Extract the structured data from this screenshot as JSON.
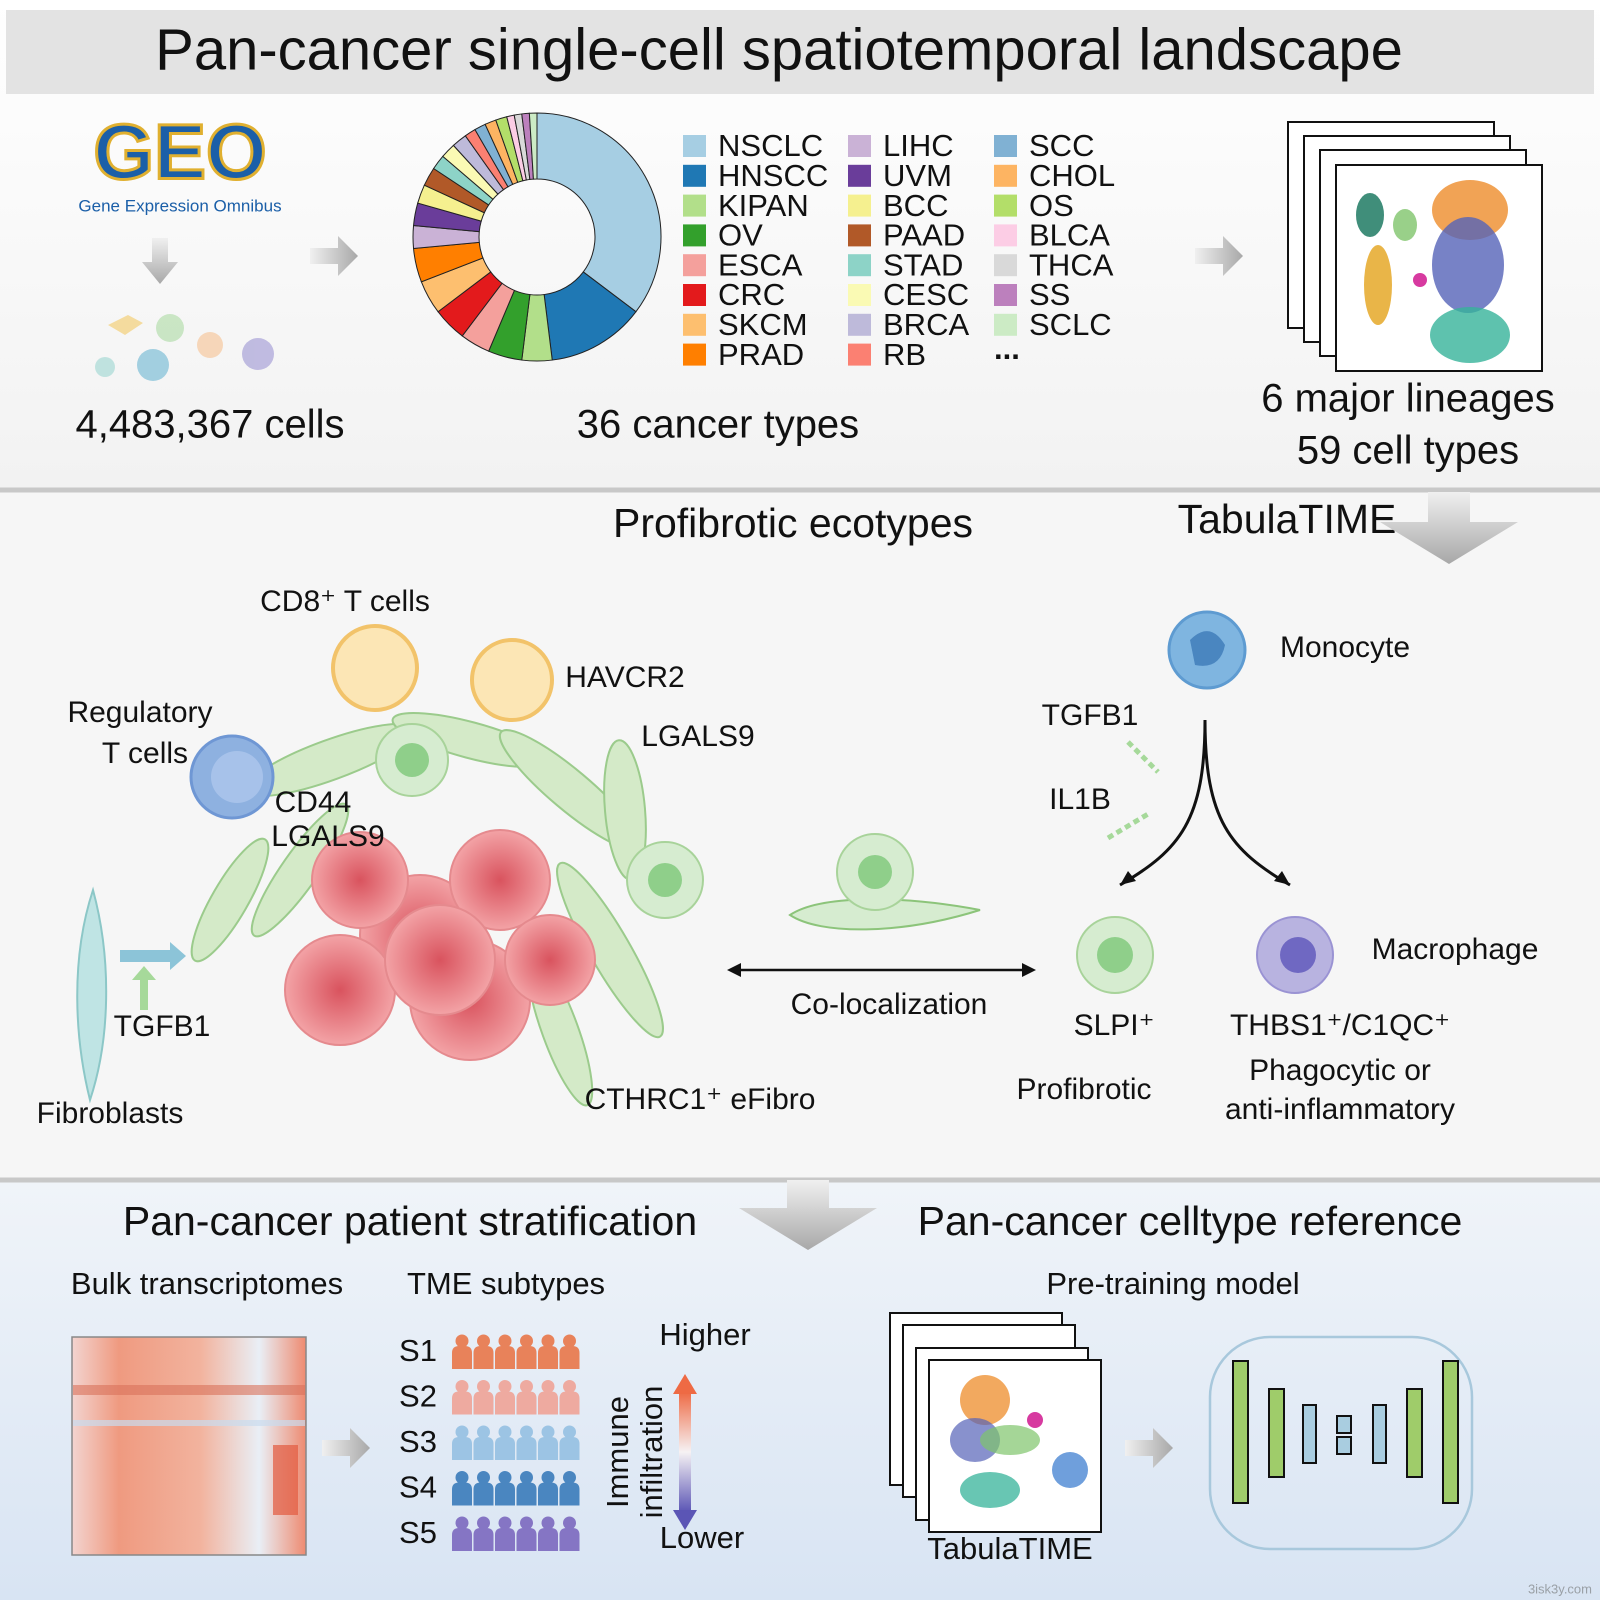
{
  "header": {
    "title": "Pan-cancer single-cell spatiotemporal landscape"
  },
  "top": {
    "geo_logo": "GEO",
    "geo_caption": "Gene Expression Omnibus",
    "cells": "4,483,367 cells",
    "cancer_types": "36 cancer types",
    "lineages": "6 major lineages",
    "cell_types": "59 cell types",
    "donut": {
      "labels": [
        "NSCLC",
        "HNSCC",
        "KIPAN",
        "OV",
        "ESCA",
        "CRC",
        "SKCM",
        "PRAD",
        "LIHC",
        "UVM",
        "BCC",
        "PAAD",
        "STAD",
        "CESC",
        "BRCA",
        "RB",
        "SCC",
        "CHOL",
        "OS",
        "BLCA",
        "THCA",
        "SS",
        "SCLC"
      ],
      "values": [
        36,
        13,
        4,
        4.5,
        4,
        4.5,
        4.5,
        4.5,
        3,
        3,
        2.5,
        2.5,
        2,
        2,
        2,
        1.5,
        1.5,
        1.5,
        1.5,
        1,
        1,
        1,
        1
      ],
      "colors": [
        "#a6cee3",
        "#1f78b4",
        "#b2df8a",
        "#33a02c",
        "#f4a09c",
        "#e31a1c",
        "#fdbf6f",
        "#ff7f00",
        "#cab2d6",
        "#6a3d9a",
        "#f5f08f",
        "#b15928",
        "#8dd3c7",
        "#fafab4",
        "#bebada",
        "#fb8072",
        "#80b1d3",
        "#fdb462",
        "#b3de69",
        "#fccde5",
        "#d9d9d9",
        "#bc80bd",
        "#ccebc5"
      ],
      "more": "..."
    }
  },
  "middle": {
    "title": "Profibrotic ecotypes",
    "tabula": "TabulaTIME",
    "cd8": "CD8⁺ T cells",
    "havcr2": "HAVCR2",
    "lgals9_a": "LGALS9",
    "treg_1": "Regulatory",
    "treg_2": "T cells",
    "cd44": "CD44",
    "lgals9_b": "LGALS9",
    "tgfb1_a": "TGFB1",
    "fibroblasts": "Fibroblasts",
    "cthrc1": "CTHRC1⁺ eFibro",
    "coloc": "Co-localization",
    "monocyte": "Monocyte",
    "tgfb1_b": "TGFB1",
    "il1b": "IL1B",
    "slpi": "SLPI⁺",
    "macrophage": "Macrophage",
    "thbs1": "THBS1⁺/C1QC⁺",
    "profibrotic": "Profibrotic",
    "phago_1": "Phagocytic or",
    "phago_2": "anti-inflammatory"
  },
  "bottom": {
    "strat_title": "Pan-cancer patient stratification",
    "ref_title": "Pan-cancer celltype reference",
    "bulk": "Bulk transcriptomes",
    "tme": "TME subtypes",
    "subtypes": [
      {
        "label": "S1",
        "color": "#e8825a"
      },
      {
        "label": "S2",
        "color": "#eeaaa0"
      },
      {
        "label": "S3",
        "color": "#9cc4e4"
      },
      {
        "label": "S4",
        "color": "#4a86c0"
      },
      {
        "label": "S5",
        "color": "#8575c4"
      }
    ],
    "higher": "Higher",
    "lower": "Lower",
    "immune_1": "Immune",
    "immune_2": "infiltration",
    "pretrain": "Pre-training model",
    "tabula": "TabulaTIME"
  },
  "watermark": "3isk3y.com"
}
